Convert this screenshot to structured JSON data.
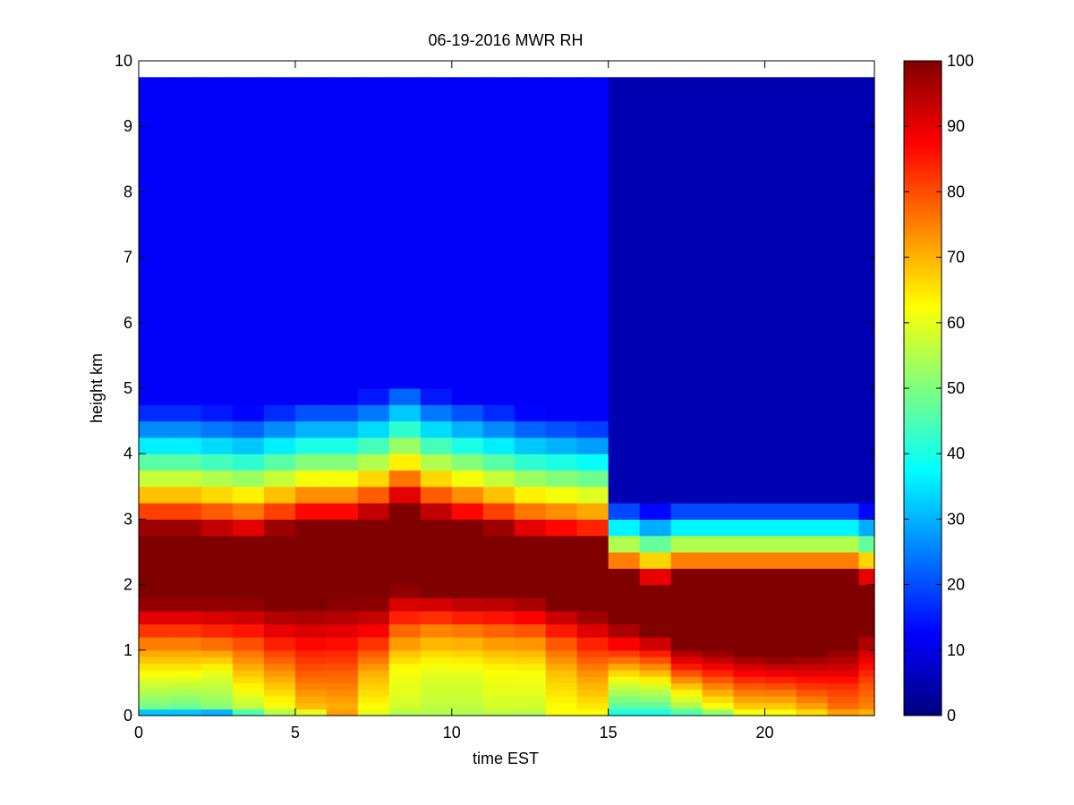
{
  "chart_data": {
    "type": "heatmap",
    "title": "06-19-2016 MWR RH",
    "xlabel": "time EST",
    "ylabel": "height km",
    "xlim": [
      0,
      23.5
    ],
    "ylim": [
      0,
      10
    ],
    "xticks": [
      0,
      5,
      10,
      15,
      20
    ],
    "yticks": [
      0,
      1,
      2,
      3,
      4,
      5,
      6,
      7,
      8,
      9,
      10
    ],
    "colorbar": {
      "min": 0,
      "max": 100,
      "ticks": [
        0,
        10,
        20,
        30,
        40,
        50,
        60,
        70,
        80,
        90,
        100
      ],
      "colormap": "jet"
    },
    "grid": false,
    "time_step_hours": 1,
    "data_top_km": 9.75,
    "height_levels_km": [
      0.0,
      0.1,
      0.2,
      0.3,
      0.4,
      0.5,
      0.6,
      0.7,
      0.8,
      0.9,
      1.0,
      1.2,
      1.4,
      1.6,
      1.8,
      2.0,
      2.25,
      2.5,
      2.75,
      3.0,
      3.25,
      3.5,
      3.75,
      4.0,
      4.25,
      4.5,
      4.75,
      5.0,
      5.5,
      6.0,
      6.5,
      7.0,
      7.5,
      8.0,
      8.5,
      9.0,
      9.5,
      9.75
    ],
    "profiles": [
      {
        "time": 0,
        "top": 3.2,
        "bottom": 1.75,
        "surface": [
          32,
          48,
          62,
          78
        ]
      },
      {
        "time": 1,
        "top": 3.2,
        "bottom": 1.75,
        "surface": [
          32,
          47,
          62,
          78
        ]
      },
      {
        "time": 2,
        "top": 3.15,
        "bottom": 1.75,
        "surface": [
          30,
          50,
          60,
          80
        ]
      },
      {
        "time": 3,
        "top": 3.1,
        "bottom": 1.75,
        "surface": [
          45,
          55,
          68,
          82
        ]
      },
      {
        "time": 4,
        "top": 3.2,
        "bottom": 1.7,
        "surface": [
          55,
          60,
          72,
          86
        ]
      },
      {
        "time": 5,
        "top": 3.3,
        "bottom": 1.7,
        "surface": [
          60,
          68,
          78,
          88
        ]
      },
      {
        "time": 6,
        "top": 3.3,
        "bottom": 1.75,
        "surface": [
          72,
          70,
          78,
          88
        ]
      },
      {
        "time": 7,
        "top": 3.4,
        "bottom": 1.75,
        "surface": [
          60,
          62,
          70,
          85
        ]
      },
      {
        "time": 8,
        "top": 3.6,
        "bottom": 1.95,
        "surface": [
          55,
          58,
          62,
          78
        ]
      },
      {
        "time": 9,
        "top": 3.4,
        "bottom": 1.9,
        "surface": [
          55,
          56,
          60,
          74
        ]
      },
      {
        "time": 10,
        "top": 3.3,
        "bottom": 1.85,
        "surface": [
          55,
          56,
          60,
          74
        ]
      },
      {
        "time": 11,
        "top": 3.2,
        "bottom": 1.85,
        "surface": [
          56,
          58,
          62,
          76
        ]
      },
      {
        "time": 12,
        "top": 3.1,
        "bottom": 1.8,
        "surface": [
          55,
          58,
          62,
          76
        ]
      },
      {
        "time": 13,
        "top": 3.05,
        "bottom": 1.7,
        "surface": [
          62,
          62,
          68,
          80
        ]
      },
      {
        "time": 14,
        "top": 3.0,
        "bottom": 1.6,
        "surface": [
          62,
          64,
          72,
          84
        ]
      },
      {
        "time": 15,
        "top": 2.5,
        "bottom": 1.4,
        "surface": [
          40,
          45,
          60,
          82
        ]
      },
      {
        "time": 16,
        "top": 2.4,
        "bottom": 1.25,
        "surface": [
          40,
          45,
          60,
          80
        ]
      },
      {
        "time": 17,
        "top": 2.5,
        "bottom": 1.05,
        "surface": [
          45,
          52,
          66,
          84
        ]
      },
      {
        "time": 18,
        "top": 2.5,
        "bottom": 1.0,
        "surface": [
          52,
          60,
          72,
          86
        ]
      },
      {
        "time": 19,
        "top": 2.5,
        "bottom": 0.95,
        "surface": [
          62,
          66,
          76,
          88
        ]
      },
      {
        "time": 20,
        "top": 2.5,
        "bottom": 0.9,
        "surface": [
          62,
          66,
          76,
          88
        ]
      },
      {
        "time": 21,
        "top": 2.5,
        "bottom": 0.95,
        "surface": [
          66,
          70,
          80,
          90
        ]
      },
      {
        "time": 22,
        "top": 2.5,
        "bottom": 1.05,
        "surface": [
          72,
          76,
          82,
          92
        ]
      },
      {
        "time": 23,
        "top": 2.4,
        "bottom": 1.3,
        "surface": [
          70,
          74,
          80,
          90
        ]
      }
    ],
    "upper_rh": {
      "above_5km_before_15h": 12,
      "above_5km_after_15h": 5
    }
  }
}
